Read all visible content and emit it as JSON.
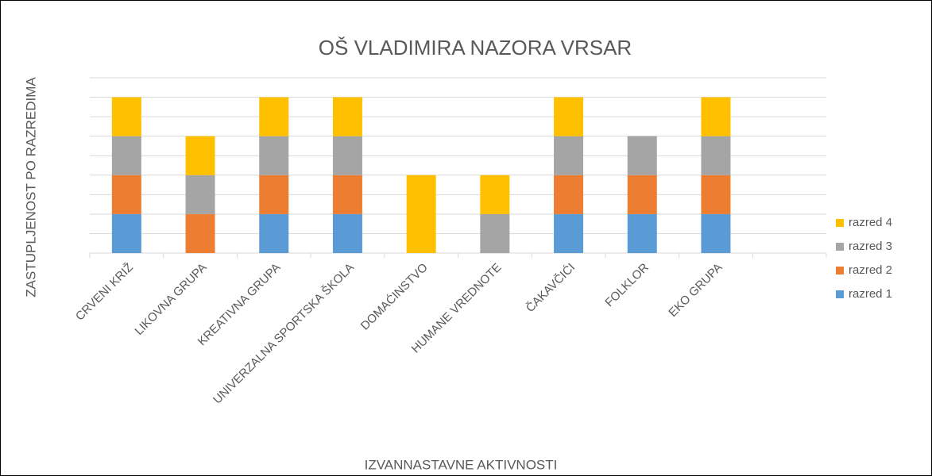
{
  "chart_data": {
    "type": "stacked_bar",
    "title": "OŠ VLADIMIRA NAZORA VRSAR",
    "x_label": "IZVANNASTAVNE AKTIVNOSTI",
    "y_label": "ZASTUPLJENOST PO RAZREDIMA",
    "categories": [
      "CRVENI KRIŽ",
      "LIKOVNA GRUPA",
      "KREATIVNA GRUPA",
      "UNIVERZALNA SPORTSKA  ŠKOLA",
      "DOMAĆINSTVO",
      "HUMANE VREDNOTE",
      "ČAKAVČIĆI",
      "FOLKLOR",
      "EKO GRUPA",
      null
    ],
    "series": [
      {
        "name": "razred 1",
        "color": "#5b9bd5",
        "values": [
          1,
          0,
          1,
          1,
          0,
          0,
          1,
          1,
          1,
          null
        ]
      },
      {
        "name": "razred 2",
        "color": "#ed7d31",
        "values": [
          1,
          1,
          1,
          1,
          0,
          0,
          1,
          1,
          1,
          null
        ]
      },
      {
        "name": "razred 3",
        "color": "#a5a5a5",
        "values": [
          1,
          1,
          1,
          1,
          0,
          1,
          1,
          1,
          1,
          null
        ]
      },
      {
        "name": "razred 4",
        "color": "#ffc000",
        "values": [
          1,
          1,
          1,
          1,
          2,
          1,
          1,
          0,
          1,
          null
        ]
      }
    ],
    "ylim": [
      0,
      4.5
    ],
    "yticks": [
      0,
      0.5,
      1,
      1.5,
      2,
      2.5,
      3,
      3.5,
      4,
      4.5
    ],
    "grid": true,
    "legend": "right"
  }
}
